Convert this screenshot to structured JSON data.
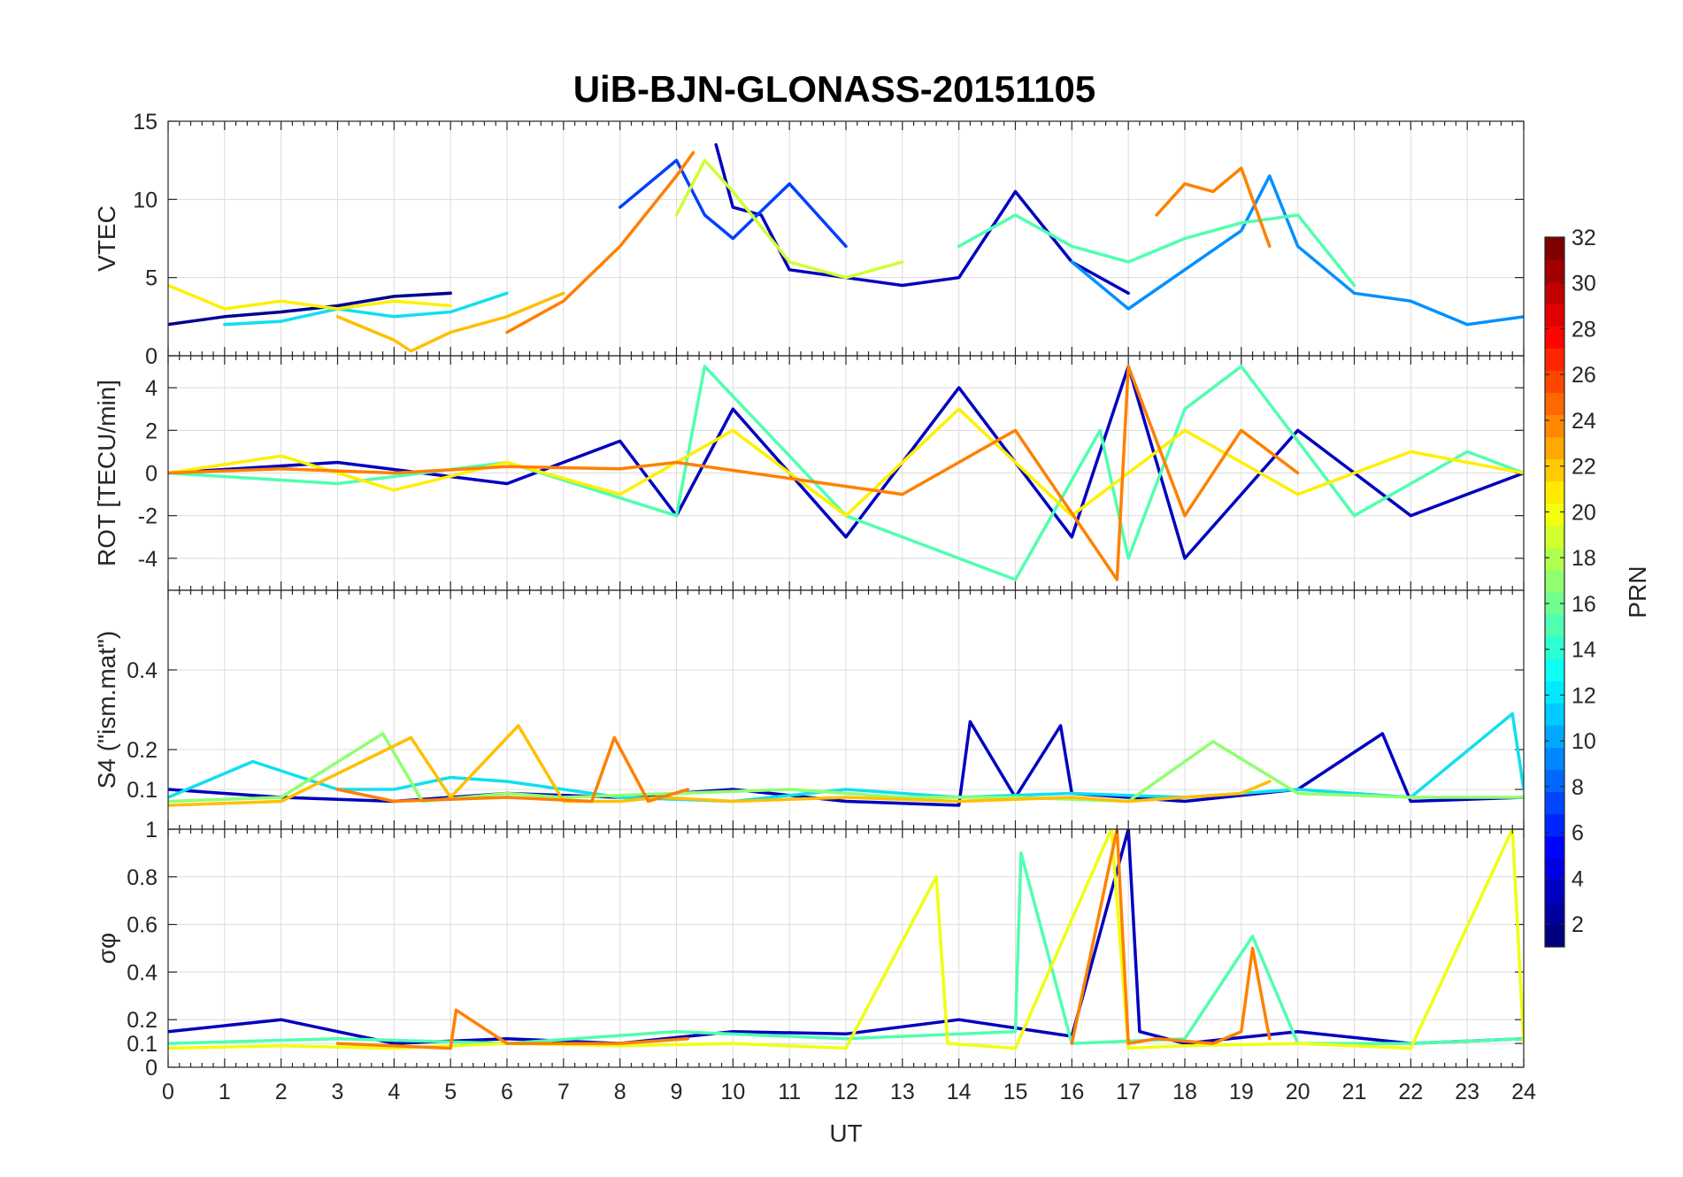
{
  "chart_data": {
    "type": "line",
    "title": "UiB-BJN-GLONASS-20151105",
    "xlabel": "UT",
    "xlim": [
      0,
      24
    ],
    "x_ticks": [
      "0",
      "1",
      "2",
      "3",
      "4",
      "5",
      "6",
      "7",
      "8",
      "9",
      "10",
      "11",
      "12",
      "13",
      "14",
      "15",
      "16",
      "17",
      "18",
      "19",
      "20",
      "21",
      "22",
      "23",
      "24"
    ],
    "grid": true,
    "panels": [
      {
        "ylabel": "VTEC",
        "ylim": [
          0,
          15
        ],
        "y_ticks": [
          "0",
          "5",
          "10",
          "15"
        ],
        "series": [
          {
            "prn": 2,
            "color": "#00008f",
            "x": [
              0,
              1,
              2,
              3,
              4,
              5
            ],
            "y": [
              2.0,
              2.5,
              2.8,
              3.2,
              3.8,
              4.0
            ]
          },
          {
            "prn": 3,
            "color": "#0000bf",
            "x": [
              9.7,
              10,
              10.5,
              11,
              12,
              13,
              14,
              15,
              16,
              17
            ],
            "y": [
              13.5,
              9.5,
              9.0,
              5.5,
              5.0,
              4.5,
              5.0,
              10.5,
              6.0,
              4.0
            ]
          },
          {
            "prn": 6,
            "color": "#0040ff",
            "x": [
              8,
              9,
              9.5,
              10,
              11,
              12
            ],
            "y": [
              9.5,
              12.5,
              9.0,
              7.5,
              11.0,
              7.0
            ]
          },
          {
            "prn": 9,
            "color": "#0090ff",
            "x": [
              16,
              17,
              18,
              19,
              19.5,
              20,
              21,
              22,
              23,
              24
            ],
            "y": [
              6.0,
              3.0,
              5.5,
              8.0,
              11.5,
              7.0,
              4.0,
              3.5,
              2.0,
              2.5
            ]
          },
          {
            "prn": 12,
            "color": "#10dfef",
            "x": [
              1,
              2,
              3,
              4,
              5,
              6
            ],
            "y": [
              2.0,
              2.2,
              3.0,
              2.5,
              2.8,
              4.0
            ]
          },
          {
            "prn": 15,
            "color": "#50ffaf",
            "x": [
              14,
              15,
              16,
              17,
              18,
              19,
              20,
              21
            ],
            "y": [
              7.0,
              9.0,
              7.0,
              6.0,
              7.5,
              8.5,
              9.0,
              4.5
            ]
          },
          {
            "prn": 19,
            "color": "#cfff30",
            "x": [
              9,
              9.5,
              10,
              11,
              12,
              13
            ],
            "y": [
              9.0,
              12.5,
              10.5,
              6.0,
              5.0,
              6.0
            ]
          },
          {
            "prn": 21,
            "color": "#ffef00",
            "x": [
              0,
              1,
              2,
              3,
              4,
              5
            ],
            "y": [
              4.5,
              3.0,
              3.5,
              3.0,
              3.5,
              3.2
            ]
          },
          {
            "prn": 22,
            "color": "#ffbf00",
            "x": [
              3,
              4,
              4.3,
              5,
              6,
              7
            ],
            "y": [
              2.5,
              1.0,
              0.3,
              1.5,
              2.5,
              4.0
            ]
          },
          {
            "prn": 24,
            "color": "#ff8000",
            "x": [
              6,
              7,
              8,
              9,
              9.3
            ],
            "y": [
              1.5,
              3.5,
              7.0,
              11.5,
              13.0
            ]
          },
          {
            "prn": 24,
            "color": "#ff8000",
            "x": [
              17.5,
              18,
              18.5,
              19,
              19.5
            ],
            "y": [
              9.0,
              11.0,
              10.5,
              12.0,
              7.0
            ]
          }
        ]
      },
      {
        "ylabel": "ROT [TECU/min]",
        "ylim": [
          -5.5,
          5.5
        ],
        "y_ticks": [
          "-4",
          "-2",
          "0",
          "2",
          "4"
        ],
        "series": [
          {
            "prn": 3,
            "color": "#0000bf",
            "x": [
              0,
              3,
              6,
              8,
              9,
              10,
              12,
              14,
              16,
              17,
              18,
              20,
              22,
              24
            ],
            "y": [
              0,
              0.5,
              -0.5,
              1.5,
              -2,
              3,
              -3,
              4,
              -3,
              5,
              -4,
              2,
              -2,
              0
            ]
          },
          {
            "prn": 15,
            "color": "#50ffaf",
            "x": [
              0,
              3,
              6,
              9,
              9.5,
              12,
              15,
              16.5,
              17,
              18,
              19,
              21,
              23,
              24
            ],
            "y": [
              0,
              -0.5,
              0.5,
              -2,
              5,
              -2,
              -5,
              2,
              -4,
              3,
              5,
              -2,
              1,
              0
            ]
          },
          {
            "prn": 21,
            "color": "#ffef00",
            "x": [
              0,
              2,
              4,
              6,
              8,
              10,
              12,
              14,
              16,
              18,
              20,
              22,
              24
            ],
            "y": [
              0,
              0.8,
              -0.8,
              0.5,
              -1,
              2,
              -2,
              3,
              -2,
              2,
              -1,
              1,
              0
            ]
          },
          {
            "prn": 24,
            "color": "#ff8000",
            "x": [
              0,
              2,
              4,
              6,
              8,
              9,
              13,
              15,
              16.8,
              17,
              18,
              19,
              20
            ],
            "y": [
              0,
              0.2,
              0,
              0.3,
              0.2,
              0.5,
              -1,
              2,
              -5,
              5,
              -2,
              2,
              0
            ]
          }
        ]
      },
      {
        "ylabel": "S4 (\"ism.mat\")",
        "ylim": [
          0,
          0.6
        ],
        "y_ticks": [
          "0.1",
          "0.2",
          "0.4"
        ],
        "series": [
          {
            "prn": 3,
            "color": "#0000bf",
            "x": [
              0,
              2,
              4,
              6,
              8,
              10,
              12,
              14,
              14.2,
              15,
              15.8,
              16,
              18,
              20,
              21.5,
              22,
              24
            ],
            "y": [
              0.1,
              0.08,
              0.07,
              0.09,
              0.08,
              0.1,
              0.07,
              0.06,
              0.27,
              0.08,
              0.26,
              0.09,
              0.07,
              0.1,
              0.24,
              0.07,
              0.08
            ]
          },
          {
            "prn": 12,
            "color": "#10dfef",
            "x": [
              0,
              1.5,
              3,
              4,
              5,
              6,
              8,
              10,
              12,
              14,
              16,
              18,
              20,
              22,
              23.8,
              24
            ],
            "y": [
              0.08,
              0.17,
              0.1,
              0.1,
              0.13,
              0.12,
              0.08,
              0.07,
              0.1,
              0.08,
              0.09,
              0.08,
              0.1,
              0.08,
              0.29,
              0.1
            ]
          },
          {
            "prn": 17,
            "color": "#90ff6f",
            "x": [
              0,
              2,
              3.8,
              4.5,
              6,
              7,
              9,
              11,
              13,
              15,
              17,
              18.5,
              20,
              22,
              24
            ],
            "y": [
              0.07,
              0.08,
              0.24,
              0.07,
              0.09,
              0.08,
              0.09,
              0.1,
              0.08,
              0.08,
              0.07,
              0.22,
              0.09,
              0.08,
              0.08
            ]
          },
          {
            "prn": 22,
            "color": "#ffbf00",
            "x": [
              0,
              2,
              4.3,
              5,
              6.2,
              7,
              8,
              8.7,
              10,
              12,
              14,
              16,
              17,
              19,
              19.5
            ],
            "y": [
              0.06,
              0.07,
              0.23,
              0.08,
              0.26,
              0.07,
              0.07,
              0.08,
              0.07,
              0.08,
              0.07,
              0.08,
              0.07,
              0.09,
              0.12
            ]
          },
          {
            "prn": 24,
            "color": "#ff8000",
            "x": [
              3,
              4,
              6,
              7.5,
              7.9,
              8.5,
              9.2
            ],
            "y": [
              0.1,
              0.07,
              0.08,
              0.07,
              0.23,
              0.07,
              0.1
            ]
          }
        ]
      },
      {
        "ylabel": "σφ",
        "ylim": [
          0,
          1
        ],
        "y_ticks": [
          "0",
          "0.1",
          "0.2",
          "0.4",
          "0.6",
          "0.8",
          "1"
        ],
        "series": [
          {
            "prn": 3,
            "color": "#0000bf",
            "x": [
              0,
              2,
              4,
              6,
              8,
              10,
              12,
              14,
              16,
              17,
              17.2,
              18,
              20,
              22,
              24
            ],
            "y": [
              0.15,
              0.2,
              0.1,
              0.12,
              0.1,
              0.15,
              0.14,
              0.2,
              0.13,
              1.0,
              0.15,
              0.1,
              0.15,
              0.1,
              0.12
            ]
          },
          {
            "prn": 15,
            "color": "#50ffaf",
            "x": [
              0,
              3,
              6,
              9,
              12,
              15,
              15.1,
              16,
              18,
              19.2,
              20,
              22,
              24
            ],
            "y": [
              0.1,
              0.12,
              0.1,
              0.15,
              0.12,
              0.15,
              0.9,
              0.1,
              0.12,
              0.55,
              0.1,
              0.1,
              0.12
            ]
          },
          {
            "prn": 20,
            "color": "#efff10",
            "x": [
              0,
              2,
              4,
              6,
              8,
              10,
              12,
              13.6,
              13.8,
              15,
              16.7,
              17,
              18,
              20,
              22,
              23.8,
              24
            ],
            "y": [
              0.08,
              0.09,
              0.08,
              0.1,
              0.09,
              0.1,
              0.08,
              0.8,
              0.1,
              0.08,
              1.0,
              0.08,
              0.09,
              0.1,
              0.08,
              1.0,
              0.1
            ]
          },
          {
            "prn": 24,
            "color": "#ff8000",
            "x": [
              3,
              5,
              5.1,
              6,
              8,
              9.2
            ],
            "y": [
              0.1,
              0.08,
              0.24,
              0.1,
              0.1,
              0.12
            ]
          },
          {
            "prn": 24,
            "color": "#ff8000",
            "x": [
              16,
              16.8,
              17,
              17.5,
              18.5,
              19,
              19.2,
              19.5
            ],
            "y": [
              0.1,
              1.0,
              0.1,
              0.12,
              0.1,
              0.15,
              0.5,
              0.12
            ]
          }
        ]
      }
    ],
    "colorbar": {
      "label": "PRN",
      "colormap": "jet",
      "range": [
        1,
        32
      ],
      "ticks": [
        "2",
        "4",
        "6",
        "8",
        "10",
        "12",
        "14",
        "16",
        "18",
        "20",
        "22",
        "24",
        "26",
        "28",
        "30",
        "32"
      ]
    }
  }
}
